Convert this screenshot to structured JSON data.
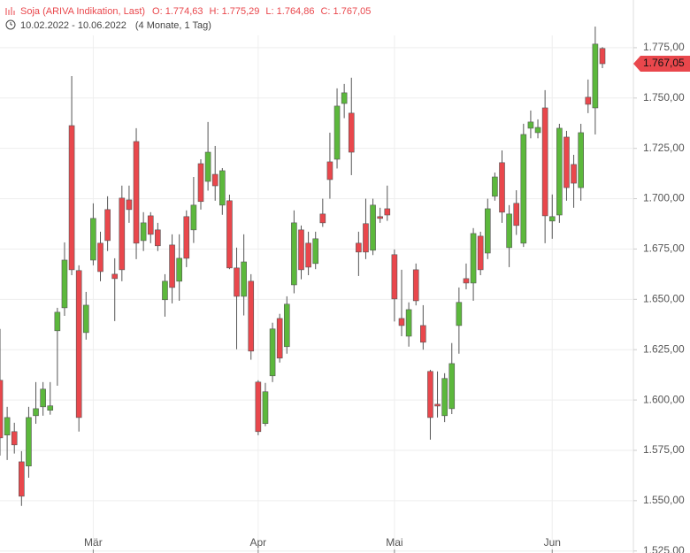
{
  "chart_data": {
    "type": "candlestick",
    "title": "Soja (ARIVA Indikation, Last)",
    "ohlc_summary": [
      "O: 1.774,63",
      "H: 1.775,29",
      "L: 1.764,86",
      "C: 1.767,05"
    ],
    "date_range": "10.02.2022 - 10.06.2022",
    "period": "(4 Monate, 1 Tag)",
    "categories": [
      null,
      null,
      null,
      null,
      null,
      null,
      null,
      null,
      null,
      null,
      null,
      null,
      null,
      "Mär",
      null,
      null,
      null,
      null,
      null,
      null,
      null,
      null,
      null,
      null,
      null,
      null,
      null,
      null,
      null,
      null,
      null,
      null,
      null,
      null,
      null,
      null,
      "Apr",
      null,
      null,
      null,
      null,
      null,
      null,
      null,
      null,
      null,
      null,
      null,
      null,
      null,
      null,
      null,
      null,
      null,
      null,
      "Mai",
      null,
      null,
      null,
      null,
      null,
      null,
      null,
      null,
      null,
      null,
      null,
      null,
      null,
      null,
      null,
      null,
      null,
      null,
      null,
      null,
      null,
      "Jun",
      null,
      null,
      null,
      null,
      null,
      null,
      null
    ],
    "open": [
      1.6098,
      1.5826,
      1.5843,
      1.5693,
      1.5672,
      1.5922,
      1.5966,
      1.5949,
      1.6344,
      1.6458,
      1.7363,
      1.6643,
      1.6335,
      1.6695,
      1.6779,
      1.6946,
      1.6625,
      1.7003,
      1.6994,
      1.7284,
      1.6792,
      1.6915,
      1.6845,
      1.6498,
      1.677,
      1.659,
      1.6911,
      1.6845,
      1.7174,
      1.7086,
      1.7121,
      1.6968,
      1.699,
      1.6656,
      1.6515,
      1.659,
      1.6089,
      1.5883,
      1.612,
      1.6405,
      1.6265,
      1.6572,
      1.6845,
      1.6779,
      1.6678,
      1.6924,
      1.7183,
      1.7196,
      1.7473,
      1.7425,
      1.6779,
      1.6876,
      1.6744,
      1.6911,
      1.695,
      1.6722,
      1.6405,
      1.6317,
      1.6647,
      1.637,
      1.6142,
      1.5979,
      1.5922,
      1.5957,
      1.637,
      1.6603,
      1.6581,
      1.6814,
      1.673,
      1.7012,
      1.7179,
      1.6757,
      1.6977,
      1.6779,
      1.735,
      1.7328,
      1.7451,
      1.6889,
      1.6919,
      1.7306,
      1.717,
      1.7055,
      1.7504,
      1.7451,
      1.77463
    ],
    "high": [
      1.6353,
      1.5966,
      1.5887,
      1.5746,
      1.5966,
      1.6089,
      1.6089,
      1.6089,
      1.6458,
      1.6783,
      1.7609,
      1.6669,
      1.6537,
      1.6977,
      1.6836,
      1.7012,
      1.6704,
      1.7065,
      1.7065,
      1.735,
      1.6933,
      1.6933,
      1.688,
      1.6625,
      1.6823,
      1.6823,
      1.6942,
      1.7108,
      1.7196,
      1.7381,
      1.7262,
      1.7152,
      1.702,
      1.6757,
      1.6823,
      1.6625,
      1.6098,
      1.6085,
      1.6384,
      1.6428,
      1.6515,
      1.6942,
      1.6867,
      1.6836,
      1.6836,
      1.7,
      1.7328,
      1.7548,
      1.757,
      1.7601,
      1.6836,
      1.7,
      1.7,
      1.6955,
      1.7065,
      1.6748,
      1.6647,
      1.6485,
      1.6678,
      1.6471,
      1.615,
      1.6142,
      1.6133,
      1.6283,
      1.6559,
      1.6678,
      1.6854,
      1.6836,
      1.7,
      1.713,
      1.724,
      1.6968,
      1.7042,
      1.7372,
      1.7438,
      1.7394,
      1.7539,
      1.7021,
      1.7372,
      1.7337,
      1.7218,
      1.7372,
      1.7592,
      1.7855,
      1.77529
    ],
    "low": [
      1.5724,
      1.5702,
      1.5734,
      1.5474,
      1.5614,
      1.5882,
      1.5922,
      1.5927,
      1.6071,
      1.6418,
      1.662,
      1.5843,
      1.63,
      1.6669,
      1.659,
      1.674,
      1.6392,
      1.659,
      1.688,
      1.67,
      1.674,
      1.6779,
      1.674,
      1.6414,
      1.648,
      1.6493,
      1.666,
      1.678,
      1.6946,
      1.704,
      1.699,
      1.692,
      1.665,
      1.6252,
      1.642,
      1.62,
      1.5825,
      1.587,
      1.6089,
      1.6186,
      1.623,
      1.653,
      1.66,
      1.662,
      1.665,
      1.686,
      1.7,
      1.715,
      1.74,
      1.7117,
      1.6616,
      1.67,
      1.672,
      1.688,
      1.689,
      1.639,
      1.6317,
      1.6265,
      1.647,
      1.625,
      1.5803,
      1.5913,
      1.589,
      1.593,
      1.623,
      1.655,
      1.6493,
      1.662,
      1.67,
      1.699,
      1.688,
      1.666,
      1.682,
      1.676,
      1.73,
      1.73,
      1.6779,
      1.6801,
      1.688,
      1.699,
      1.6955,
      1.699,
      1.7425,
      1.7319,
      1.76486
    ],
    "close": [
      1.5812,
      1.5913,
      1.5777,
      1.5522,
      1.5913,
      1.5957,
      1.6054,
      1.5971,
      1.6436,
      1.6695,
      1.6647,
      1.5913,
      1.6471,
      1.6902,
      1.6638,
      1.6792,
      1.6603,
      1.6647,
      1.6946,
      1.6779,
      1.688,
      1.6823,
      1.6766,
      1.659,
      1.6559,
      1.6704,
      1.6704,
      1.6968,
      1.6986,
      1.7231,
      1.7064,
      1.7139,
      1.6656,
      1.6515,
      1.6686,
      1.6243,
      1.5843,
      1.6041,
      1.6353,
      1.6208,
      1.6476,
      1.688,
      1.6647,
      1.666,
      1.6801,
      1.688,
      1.7095,
      1.746,
      1.7526,
      1.7231,
      1.6735,
      1.6735,
      1.6968,
      1.6902,
      1.6919,
      1.6502,
      1.637,
      1.6449,
      1.6493,
      1.6287,
      1.5913,
      1.597,
      1.6107,
      1.6181,
      1.6485,
      1.6581,
      1.6827,
      1.6647,
      1.695,
      1.7108,
      1.6933,
      1.6924,
      1.6867,
      1.7319,
      1.7381,
      1.7354,
      1.6915,
      1.6911,
      1.735,
      1.7055,
      1.7077,
      1.7328,
      1.7469,
      1.7768,
      1.76705
    ],
    "up_color": "#5cb83c",
    "down_color": "#e9474c",
    "ylim": [
      1.524,
      1.7987
    ],
    "yticks": [
      {
        "value": 1.525,
        "label": "1.525,00"
      },
      {
        "value": 1.55,
        "label": "1.550,00"
      },
      {
        "value": 1.575,
        "label": "1.575,00"
      },
      {
        "value": 1.6,
        "label": "1.600,00"
      },
      {
        "value": 1.625,
        "label": "1.625,00"
      },
      {
        "value": 1.65,
        "label": "1.650,00"
      },
      {
        "value": 1.675,
        "label": "1.675,00"
      },
      {
        "value": 1.7,
        "label": "1.700,00"
      },
      {
        "value": 1.725,
        "label": "1.725,00"
      },
      {
        "value": 1.75,
        "label": "1.750,00"
      },
      {
        "value": 1.775,
        "label": "1.775,00"
      }
    ],
    "last_price": {
      "value": 1.76705,
      "label": "1.767,05"
    },
    "grid": true
  }
}
